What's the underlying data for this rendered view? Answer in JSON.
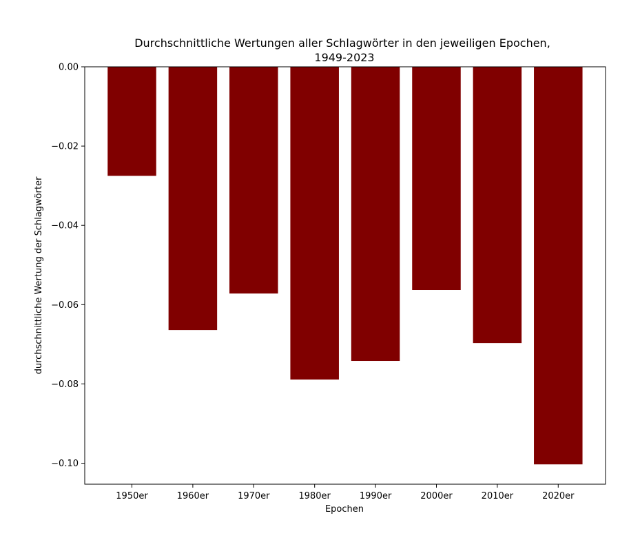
{
  "chart_data": {
    "type": "bar",
    "title": "Durchschnittliche Wertungen aller Schlagwörter in den jeweiligen Epochen,",
    "subtitle": "1949-2023",
    "xlabel": "Epochen",
    "ylabel": "durchschnittliche Wertung der Schlagwörter",
    "categories": [
      "1950er",
      "1960er",
      "1970er",
      "1980er",
      "1990er",
      "2000er",
      "2010er",
      "2020er"
    ],
    "values": [
      -0.0275,
      -0.0664,
      -0.0572,
      -0.0789,
      -0.0742,
      -0.0563,
      -0.0697,
      -0.1003
    ],
    "ylim": [
      -0.1053,
      0.0
    ],
    "yticks": [
      0.0,
      -0.02,
      -0.04,
      -0.06,
      -0.08,
      -0.1
    ],
    "ytick_labels": [
      "0.00",
      "−0.02",
      "−0.04",
      "−0.06",
      "−0.08",
      "−0.10"
    ],
    "bar_color": "#800000",
    "grid": false,
    "legend": false
  }
}
